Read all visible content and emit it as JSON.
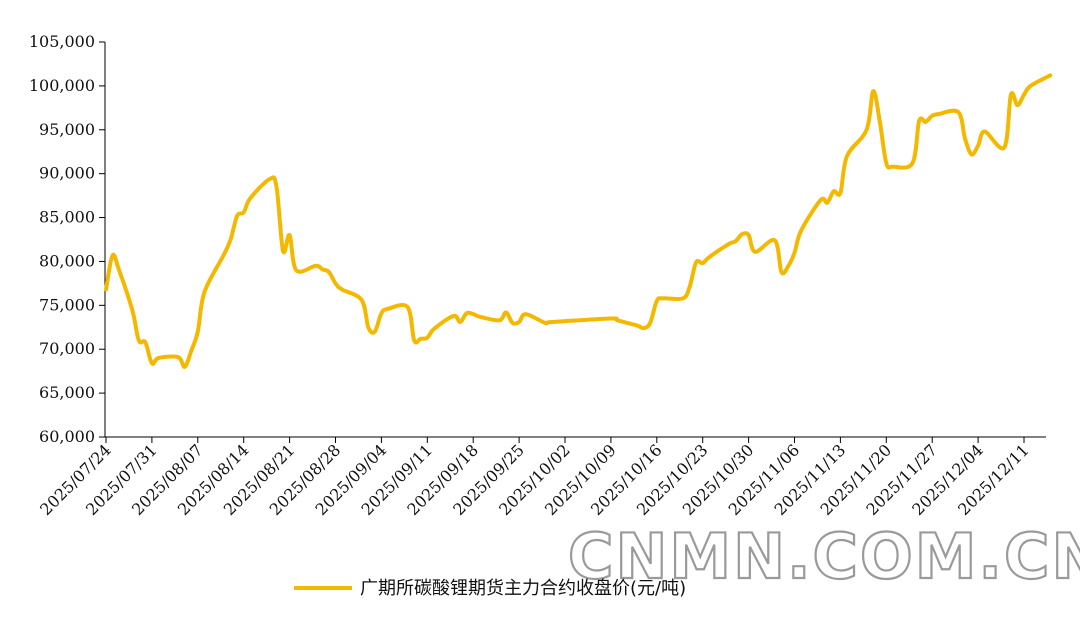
{
  "colors": {
    "series": "#F5B800",
    "axis": "#000000",
    "text": "#111111",
    "watermark_stroke": "#9a9a9a"
  },
  "watermark": "CNMN.COM.CN",
  "chart_data": {
    "type": "line",
    "title": "",
    "xlabel": "",
    "ylabel": "",
    "ylim": [
      60000,
      105000
    ],
    "y_ticks": [
      60000,
      65000,
      70000,
      75000,
      80000,
      85000,
      90000,
      95000,
      100000,
      105000
    ],
    "y_tick_labels": [
      "60,000",
      "65,000",
      "70,000",
      "75,000",
      "80,000",
      "85,000",
      "90,000",
      "95,000",
      "100,000",
      "105,000"
    ],
    "x_tick_labels": [
      "2025/07/24",
      "2025/07/31",
      "2025/08/07",
      "2025/08/14",
      "2025/08/21",
      "2025/08/28",
      "2025/09/04",
      "2025/09/11",
      "2025/09/18",
      "2025/09/25",
      "2025/10/02",
      "2025/10/09",
      "2025/10/16",
      "2025/10/23",
      "2025/10/30",
      "2025/11/06",
      "2025/11/13",
      "2025/11/20",
      "2025/11/27",
      "2025/12/04",
      "2025/12/11"
    ],
    "legend_position": "bottom",
    "grid": false,
    "series": [
      {
        "name": "广期所碳酸锂期货主力合约收盘价(元/吨)",
        "points": [
          [
            "2025/07/24",
            76800
          ],
          [
            "2025/07/25",
            80700
          ],
          [
            "2025/07/26",
            79000
          ],
          [
            "2025/07/28",
            74500
          ],
          [
            "2025/07/29",
            71000
          ],
          [
            "2025/07/30",
            70800
          ],
          [
            "2025/07/31",
            68400
          ],
          [
            "2025/08/01",
            69000
          ],
          [
            "2025/08/04",
            69100
          ],
          [
            "2025/08/05",
            68000
          ],
          [
            "2025/08/06",
            69800
          ],
          [
            "2025/08/07",
            72000
          ],
          [
            "2025/08/08",
            76500
          ],
          [
            "2025/08/11",
            80800
          ],
          [
            "2025/08/12",
            82500
          ],
          [
            "2025/08/13",
            85200
          ],
          [
            "2025/08/14",
            85600
          ],
          [
            "2025/08/15",
            87200
          ],
          [
            "2025/08/18",
            89400
          ],
          [
            "2025/08/19",
            88500
          ],
          [
            "2025/08/20",
            81200
          ],
          [
            "2025/08/21",
            83000
          ],
          [
            "2025/08/22",
            79000
          ],
          [
            "2025/08/25",
            79500
          ],
          [
            "2025/08/26",
            79100
          ],
          [
            "2025/08/27",
            78800
          ],
          [
            "2025/08/28",
            77500
          ],
          [
            "2025/08/29",
            76800
          ],
          [
            "2025/09/01",
            75600
          ],
          [
            "2025/09/02",
            72500
          ],
          [
            "2025/09/03",
            72000
          ],
          [
            "2025/09/04",
            74100
          ],
          [
            "2025/09/05",
            74600
          ],
          [
            "2025/09/08",
            74800
          ],
          [
            "2025/09/09",
            71000
          ],
          [
            "2025/09/10",
            71200
          ],
          [
            "2025/09/11",
            71300
          ],
          [
            "2025/09/12",
            72300
          ],
          [
            "2025/09/15",
            73800
          ],
          [
            "2025/09/16",
            73100
          ],
          [
            "2025/09/17",
            74100
          ],
          [
            "2025/09/18",
            74000
          ],
          [
            "2025/09/19",
            73700
          ],
          [
            "2025/09/22",
            73300
          ],
          [
            "2025/09/23",
            74200
          ],
          [
            "2025/09/24",
            73000
          ],
          [
            "2025/09/25",
            73100
          ],
          [
            "2025/09/26",
            74000
          ],
          [
            "2025/09/29",
            73000
          ],
          [
            "2025/09/30",
            73100
          ],
          [
            "2025/10/09",
            73500
          ],
          [
            "2025/10/10",
            73300
          ],
          [
            "2025/10/13",
            72700
          ],
          [
            "2025/10/14",
            72400
          ],
          [
            "2025/10/15",
            73000
          ],
          [
            "2025/10/16",
            75500
          ],
          [
            "2025/10/17",
            75800
          ],
          [
            "2025/10/20",
            75800
          ],
          [
            "2025/10/21",
            77100
          ],
          [
            "2025/10/22",
            79900
          ],
          [
            "2025/10/23",
            79800
          ],
          [
            "2025/10/24",
            80500
          ],
          [
            "2025/10/27",
            82000
          ],
          [
            "2025/10/28",
            82300
          ],
          [
            "2025/10/29",
            83100
          ],
          [
            "2025/10/30",
            83000
          ],
          [
            "2025/10/31",
            81100
          ],
          [
            "2025/11/03",
            82400
          ],
          [
            "2025/11/04",
            78800
          ],
          [
            "2025/11/05",
            79400
          ],
          [
            "2025/11/06",
            81000
          ],
          [
            "2025/11/07",
            83500
          ],
          [
            "2025/11/10",
            87000
          ],
          [
            "2025/11/11",
            86700
          ],
          [
            "2025/11/12",
            88000
          ],
          [
            "2025/11/13",
            87800
          ],
          [
            "2025/11/14",
            92000
          ],
          [
            "2025/11/17",
            95000
          ],
          [
            "2025/11/18",
            99400
          ],
          [
            "2025/11/19",
            96000
          ],
          [
            "2025/11/20",
            91200
          ],
          [
            "2025/11/21",
            90800
          ],
          [
            "2025/11/24",
            91200
          ],
          [
            "2025/11/25",
            96000
          ],
          [
            "2025/11/26",
            95900
          ],
          [
            "2025/11/27",
            96600
          ],
          [
            "2025/11/28",
            96800
          ],
          [
            "2025/12/01",
            97000
          ],
          [
            "2025/12/02",
            94000
          ],
          [
            "2025/12/03",
            92200
          ],
          [
            "2025/12/04",
            93200
          ],
          [
            "2025/12/05",
            94800
          ],
          [
            "2025/12/08",
            93000
          ],
          [
            "2025/12/09",
            99000
          ],
          [
            "2025/12/10",
            97800
          ],
          [
            "2025/12/11",
            99000
          ],
          [
            "2025/12/12",
            100000
          ],
          [
            "2025/12/15",
            101200
          ]
        ]
      }
    ]
  }
}
